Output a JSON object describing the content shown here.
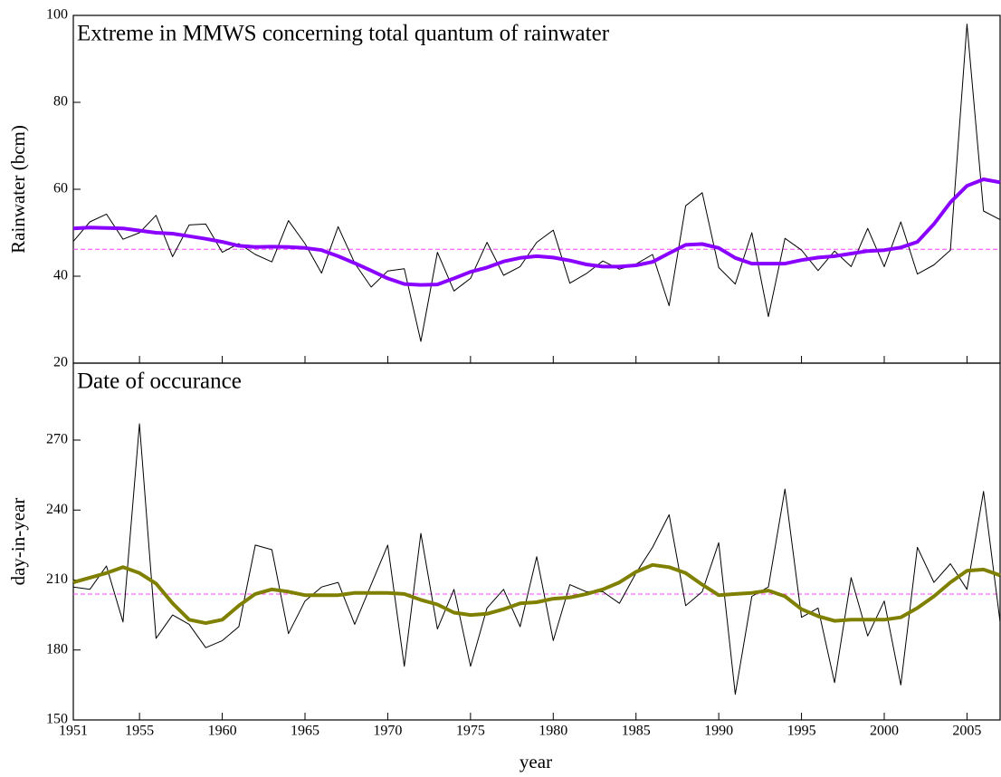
{
  "chart_data": [
    {
      "type": "line",
      "title": "Extreme in MMWS concerning total quantum of rainwater",
      "ylabel": "Rainwater (bcm)",
      "x": [
        1951,
        1952,
        1953,
        1954,
        1955,
        1956,
        1957,
        1958,
        1959,
        1960,
        1961,
        1962,
        1963,
        1964,
        1965,
        1966,
        1967,
        1968,
        1969,
        1970,
        1971,
        1972,
        1973,
        1974,
        1975,
        1976,
        1977,
        1978,
        1979,
        1980,
        1981,
        1982,
        1983,
        1984,
        1985,
        1986,
        1987,
        1988,
        1989,
        1990,
        1991,
        1992,
        1993,
        1994,
        1995,
        1996,
        1997,
        1998,
        1999,
        2000,
        2001,
        2002,
        2003,
        2004,
        2005,
        2006,
        2007
      ],
      "series": [
        {
          "color": "#000000",
          "width": 1,
          "values": [
            48,
            52.5,
            54.3,
            48.5,
            50,
            54,
            44.5,
            51.8,
            52,
            45.5,
            47.5,
            45,
            43.3,
            52.8,
            47.5,
            40.7,
            51.4,
            43,
            37.5,
            41.2,
            41.7,
            25,
            45.5,
            36.6,
            39.5,
            47.8,
            40.2,
            42.2,
            47.8,
            50.6,
            38.4,
            40.6,
            43.5,
            41.6,
            42.8,
            45,
            33.2,
            56.2,
            59.2,
            42,
            38.2,
            50,
            30.7,
            48.7,
            46,
            41.3,
            45.8,
            42.2,
            51,
            42.2,
            52.5,
            40.5,
            42.6,
            46,
            98,
            55,
            53
          ]
        },
        {
          "color": "#8a00ff",
          "width": 4,
          "values": [
            51,
            51.2,
            51.1,
            51,
            50.5,
            50,
            49.8,
            49.2,
            48.6,
            47.9,
            47,
            46.7,
            46.8,
            46.7,
            46.5,
            46,
            44.6,
            43,
            41.3,
            39.5,
            38.2,
            38,
            38.1,
            39.5,
            41,
            42,
            43.4,
            44.2,
            44.6,
            44.3,
            43.6,
            42.7,
            42.2,
            42.2,
            42.5,
            43.3,
            45.3,
            47.2,
            47.4,
            46.5,
            44.2,
            42.9,
            42.9,
            42.9,
            43.7,
            44.3,
            44.6,
            45.2,
            45.8,
            46,
            46.6,
            47.9,
            52,
            57,
            60.8,
            62.3,
            61.6
          ]
        }
      ],
      "reference_line": {
        "value": 46.2,
        "color": "#ff44ff"
      },
      "xlim": [
        1951,
        2007
      ],
      "xticks": [
        1951,
        1955,
        1960,
        1965,
        1970,
        1975,
        1980,
        1985,
        1990,
        1995,
        2000,
        2005
      ],
      "ylim": [
        20,
        100
      ],
      "yticks": [
        20,
        40,
        60,
        80,
        100
      ]
    },
    {
      "type": "line",
      "title": "Date of occurance",
      "ylabel": "day-in-year",
      "xlabel": "year",
      "x": [
        1951,
        1952,
        1953,
        1954,
        1955,
        1956,
        1957,
        1958,
        1959,
        1960,
        1961,
        1962,
        1963,
        1964,
        1965,
        1966,
        1967,
        1968,
        1969,
        1970,
        1971,
        1972,
        1973,
        1974,
        1975,
        1976,
        1977,
        1978,
        1979,
        1980,
        1981,
        1982,
        1983,
        1984,
        1985,
        1986,
        1987,
        1988,
        1989,
        1990,
        1991,
        1992,
        1993,
        1994,
        1995,
        1996,
        1997,
        1998,
        1999,
        2000,
        2001,
        2002,
        2003,
        2004,
        2005,
        2006,
        2007
      ],
      "series": [
        {
          "color": "#000000",
          "width": 1,
          "values": [
            207,
            206,
            216,
            192,
            277,
            185,
            195,
            191,
            181,
            184,
            190,
            225,
            223,
            187,
            201,
            207,
            209,
            191,
            208,
            225,
            173,
            230,
            189,
            206,
            173,
            198,
            206,
            190,
            220,
            184,
            208,
            205,
            205,
            200,
            213,
            224,
            238,
            199,
            205,
            226,
            161,
            203,
            207,
            249,
            194,
            198,
            166,
            211,
            186,
            201,
            165,
            224,
            209,
            217,
            206,
            248,
            192
          ]
        },
        {
          "color": "#808000",
          "width": 4,
          "values": [
            209,
            211,
            213,
            215.5,
            213,
            208.5,
            200,
            193,
            191.5,
            193,
            199,
            204,
            206,
            205,
            203.5,
            203.5,
            203.5,
            204.5,
            204.5,
            204.5,
            204,
            201.5,
            199.5,
            196,
            195,
            195.5,
            197.5,
            200,
            200.5,
            202,
            202.5,
            204,
            206,
            209,
            213.5,
            216.5,
            215.5,
            213,
            208,
            203.5,
            204,
            204.5,
            205.5,
            203,
            197.5,
            194.5,
            192.5,
            193,
            193,
            193,
            194,
            198,
            203,
            209,
            214,
            214.5,
            212
          ]
        }
      ],
      "reference_line": {
        "value": 204,
        "color": "#ff44ff"
      },
      "xlim": [
        1951,
        2007
      ],
      "xticks": [
        1951,
        1955,
        1960,
        1965,
        1970,
        1975,
        1980,
        1985,
        1990,
        1995,
        2000,
        2005
      ],
      "ylim": [
        150,
        303
      ],
      "yticks": [
        150,
        180,
        210,
        240,
        270
      ]
    }
  ]
}
